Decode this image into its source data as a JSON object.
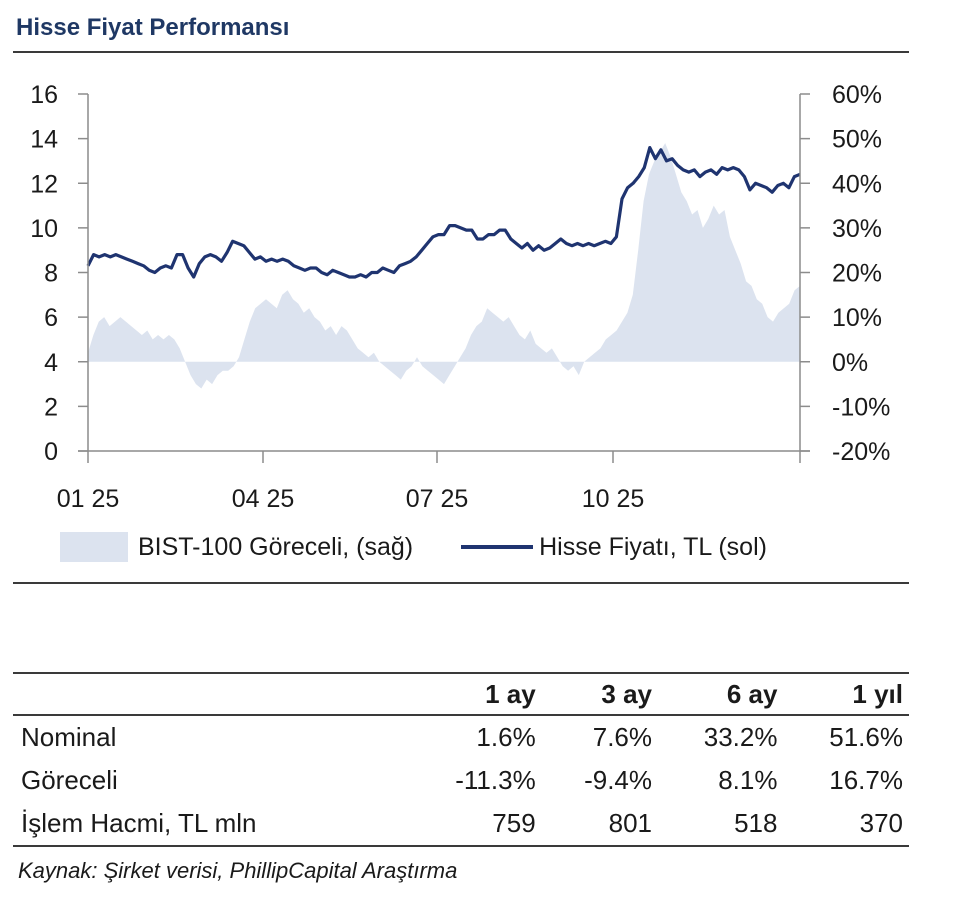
{
  "header": {
    "title": "Hisse Fiyat Performansı"
  },
  "colors": {
    "title": "#1f3864",
    "line": "#1f3470",
    "area": "#dce3ef",
    "rule": "#3a3a3a"
  },
  "chart_data": {
    "type": "line",
    "title": "Hisse Fiyat Performansı",
    "x_tick_labels": [
      "01 25",
      "04 25",
      "07 25",
      "10 25"
    ],
    "x_range": [
      "2025-01",
      "2025-12"
    ],
    "y_left": {
      "label": "Hisse Fiyatı, TL (sol)",
      "ticks": [
        0,
        2,
        4,
        6,
        8,
        10,
        12,
        14,
        16
      ],
      "range": [
        0,
        16
      ]
    },
    "y_right": {
      "label": "BIST-100 Göreceli, (sağ)",
      "ticks": [
        "-20%",
        "-10%",
        "0%",
        "10%",
        "20%",
        "30%",
        "40%",
        "50%",
        "60%"
      ],
      "range": [
        -20,
        60
      ]
    },
    "grid": false,
    "legend": {
      "position": "bottom",
      "entries": [
        "BIST-100 Göreceli, (sağ)",
        "Hisse Fiyatı, TL (sol)"
      ]
    },
    "series": [
      {
        "name": "BIST-100 Göreceli, (sağ)",
        "type": "area",
        "axis": "right",
        "unit": "%",
        "values": [
          2,
          6,
          9,
          10,
          8,
          9,
          10,
          9,
          8,
          7,
          6,
          7,
          5,
          6,
          5,
          6,
          5,
          3,
          0,
          -3,
          -5,
          -6,
          -4,
          -5,
          -3,
          -2,
          -2,
          -1,
          1,
          5,
          9,
          12,
          13,
          14,
          13,
          12,
          15,
          16,
          14,
          13,
          11,
          12,
          10,
          9,
          7,
          8,
          6,
          8,
          7,
          5,
          3,
          2,
          1,
          2,
          0,
          -1,
          -2,
          -3,
          -4,
          -2,
          -1,
          1,
          -1,
          -2,
          -3,
          -4,
          -5,
          -3,
          -1,
          1,
          3,
          6,
          8,
          9,
          12,
          11,
          10,
          9,
          10,
          8,
          6,
          5,
          7,
          4,
          3,
          2,
          3,
          1,
          -1,
          -2,
          -1,
          -3,
          0,
          1,
          2,
          3,
          5,
          6,
          7,
          9,
          11,
          15,
          25,
          36,
          42,
          45,
          47,
          49,
          46,
          42,
          38,
          36,
          33,
          34,
          30,
          32,
          35,
          33,
          34,
          28,
          25,
          22,
          18,
          17,
          14,
          13,
          10,
          9,
          11,
          12,
          13,
          16,
          17
        ]
      },
      {
        "name": "Hisse Fiyatı, TL (sol)",
        "type": "line",
        "axis": "left",
        "unit": "TL",
        "values": [
          8.3,
          8.8,
          8.7,
          8.8,
          8.7,
          8.8,
          8.7,
          8.6,
          8.5,
          8.4,
          8.3,
          8.1,
          8.0,
          8.2,
          8.3,
          8.2,
          8.8,
          8.8,
          8.2,
          7.8,
          8.4,
          8.7,
          8.8,
          8.7,
          8.5,
          8.9,
          9.4,
          9.3,
          9.2,
          8.9,
          8.6,
          8.7,
          8.5,
          8.6,
          8.5,
          8.6,
          8.5,
          8.3,
          8.2,
          8.1,
          8.2,
          8.2,
          8.0,
          7.9,
          8.1,
          8.0,
          7.9,
          7.8,
          7.8,
          7.9,
          7.8,
          8.0,
          8.0,
          8.2,
          8.1,
          8.0,
          8.3,
          8.4,
          8.5,
          8.7,
          9.0,
          9.3,
          9.6,
          9.7,
          9.7,
          10.1,
          10.1,
          10.0,
          9.9,
          9.9,
          9.5,
          9.5,
          9.7,
          9.7,
          9.9,
          9.9,
          9.5,
          9.3,
          9.1,
          9.3,
          9.0,
          9.2,
          9.0,
          9.1,
          9.3,
          9.5,
          9.3,
          9.2,
          9.3,
          9.2,
          9.3,
          9.2,
          9.3,
          9.4,
          9.3,
          9.6,
          11.3,
          11.8,
          12.0,
          12.3,
          12.7,
          13.6,
          13.1,
          13.5,
          13.0,
          13.1,
          12.8,
          12.6,
          12.5,
          12.6,
          12.3,
          12.5,
          12.6,
          12.4,
          12.7,
          12.6,
          12.7,
          12.6,
          12.3,
          11.7,
          12.0,
          11.9,
          11.8,
          11.6,
          11.9,
          12.0,
          11.8,
          12.3,
          12.4
        ]
      }
    ]
  },
  "table": {
    "columns": [
      "",
      "1 ay",
      "3 ay",
      "6 ay",
      "1 yıl"
    ],
    "rows": [
      {
        "label": "Nominal",
        "values": [
          "1.6%",
          "7.6%",
          "33.2%",
          "51.6%"
        ]
      },
      {
        "label": "Göreceli",
        "values": [
          "-11.3%",
          "-9.4%",
          "8.1%",
          "16.7%"
        ]
      },
      {
        "label": "İşlem Hacmi, TL mln",
        "values": [
          "759",
          "801",
          "518",
          "370"
        ]
      }
    ]
  },
  "source": "Kaynak: Şirket verisi, PhillipCapital Araştırma"
}
